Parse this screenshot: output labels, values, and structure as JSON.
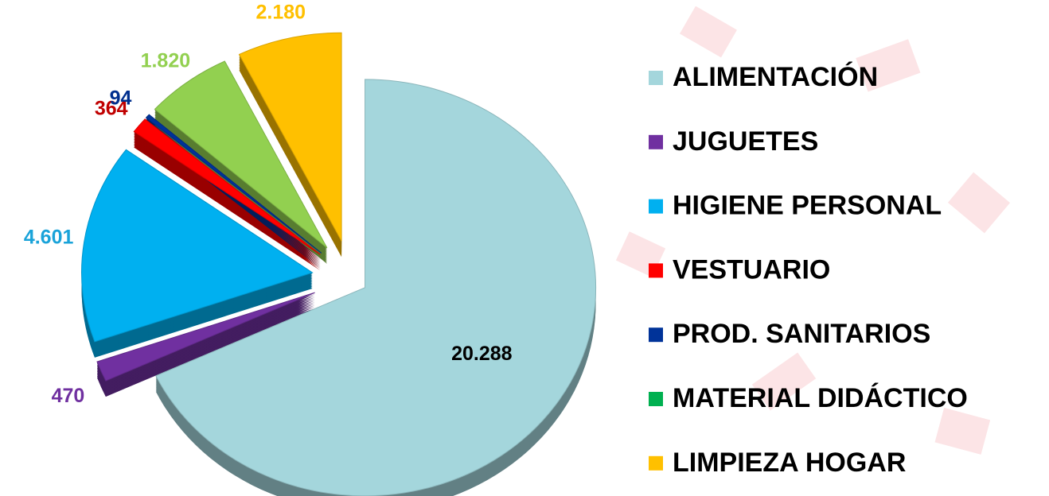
{
  "chart_data": {
    "type": "pie",
    "categories": [
      "ALIMENTACIÓN",
      "JUGUETES",
      "HIGIENE PERSONAL",
      "VESTUARIO",
      "PROD. SANITARIOS",
      "MATERIAL DIDÁCTICO",
      "LIMPIEZA HOGAR"
    ],
    "values": [
      20288,
      470,
      4601,
      364,
      94,
      1820,
      2180
    ],
    "value_labels": [
      "20.288",
      "470",
      "4.601",
      "364",
      "94",
      "1.820",
      "2.180"
    ],
    "colors": [
      "#a4d6dc",
      "#7030a0",
      "#00b0f0",
      "#ff0000",
      "#003399",
      "#92d050",
      "#ffc000"
    ],
    "legend_colors": [
      "#a4d6dc",
      "#7030a0",
      "#00b0f0",
      "#ff0000",
      "#003399",
      "#00b050",
      "#ffc000"
    ],
    "label_colors": [
      "#000000",
      "#7030a0",
      "#1aa3d9",
      "#c00000",
      "#002f8e",
      "#92d050",
      "#ffc000"
    ],
    "legend": "right"
  }
}
